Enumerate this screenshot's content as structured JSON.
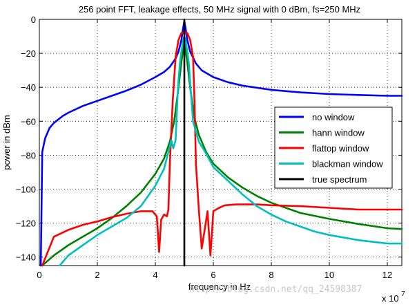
{
  "chart_data": {
    "type": "line",
    "title": "256 point FFT, leakage effects, 50 MHz signal with 0 dBm, fs=250 MHz",
    "xlabel": "frequency in Hz",
    "ylabel": "power in dBm",
    "x_multiplier": "x 10",
    "x_multiplier_exponent": "7",
    "xlim": [
      0,
      12.5
    ],
    "ylim": [
      -145,
      0
    ],
    "xticks": [
      "0",
      "2",
      "4",
      "6",
      "8",
      "10",
      "12"
    ],
    "yticks": [
      "0",
      "−20",
      "−40",
      "−60",
      "−80",
      "−100",
      "−120",
      "−140"
    ],
    "xtick_values": [
      0,
      2,
      4,
      6,
      8,
      10,
      12
    ],
    "ytick_values": [
      0,
      -20,
      -40,
      -60,
      -80,
      -100,
      -120,
      -140
    ],
    "grid": true,
    "legend_position": "right",
    "series": [
      {
        "name": "no window",
        "color": "#0000ff",
        "x": [
          0.05,
          0.1,
          0.2,
          0.35,
          0.5,
          0.8,
          1.0,
          1.5,
          2.0,
          2.5,
          3.0,
          3.5,
          4.0,
          4.3,
          4.5,
          4.7,
          4.8,
          4.9,
          4.95,
          5.0,
          5.05,
          5.1,
          5.2,
          5.4,
          5.6,
          6.0,
          6.5,
          7.0,
          8.0,
          9.0,
          10.0,
          11.0,
          12.0,
          12.5
        ],
        "y": [
          -145,
          -78,
          -70,
          -64,
          -61,
          -57,
          -55,
          -51,
          -48,
          -45,
          -42,
          -38.5,
          -34,
          -31,
          -28,
          -23,
          -19,
          -12,
          -6,
          -1,
          -6,
          -12,
          -19,
          -26,
          -30,
          -34,
          -37,
          -39,
          -41.5,
          -43,
          -44,
          -44.5,
          -45,
          -45
        ]
      },
      {
        "name": "hann window",
        "color": "#008000",
        "x": [
          0.1,
          0.5,
          1.0,
          1.5,
          2.0,
          2.5,
          3.0,
          3.5,
          4.0,
          4.3,
          4.5,
          4.65,
          4.8,
          4.9,
          5.0,
          5.1,
          5.2,
          5.35,
          5.5,
          5.75,
          6.0,
          6.5,
          7.0,
          7.5,
          8.0,
          8.5,
          9.0,
          10.0,
          11.0,
          12.0,
          12.5
        ],
        "y": [
          -145,
          -139,
          -133,
          -128,
          -123,
          -117,
          -110,
          -102,
          -91,
          -82,
          -72,
          -60,
          -40,
          -25,
          -13,
          -25,
          -40,
          -58,
          -68,
          -78,
          -85,
          -93,
          -99,
          -104,
          -108,
          -111,
          -114,
          -117.5,
          -120.5,
          -123,
          -123.5
        ]
      },
      {
        "name": "flattop window",
        "color": "#ff0000",
        "x": [
          0.1,
          0.5,
          1.0,
          1.5,
          2.0,
          2.5,
          3.0,
          3.5,
          3.9,
          4.05,
          4.13,
          4.2,
          4.3,
          4.4,
          4.45,
          4.5,
          4.6,
          4.7,
          4.8,
          4.9,
          5.0,
          5.1,
          5.2,
          5.3,
          5.35,
          5.4,
          5.5,
          5.6,
          5.8,
          5.9,
          6.0,
          6.2,
          6.4,
          6.8,
          7.5,
          8.0,
          9.0,
          10.0,
          11.0,
          12.0,
          12.5
        ],
        "y": [
          -145,
          -128,
          -124,
          -121,
          -119,
          -116.5,
          -114.5,
          -113,
          -113,
          -116,
          -137,
          -118,
          -115,
          -116,
          -112,
          -85,
          -48,
          -22,
          -12,
          -8,
          -8,
          -8,
          -12,
          -22,
          -48,
          -85,
          -112,
          -135,
          -113,
          -139,
          -113,
          -111,
          -109.5,
          -109,
          -109,
          -109.5,
          -110,
          -111,
          -112,
          -112,
          -112
        ]
      },
      {
        "name": "blackman window",
        "color": "#00bfbf",
        "x": [
          0.7,
          1.0,
          1.5,
          2.0,
          2.5,
          3.0,
          3.5,
          4.0,
          4.3,
          4.5,
          4.55,
          4.62,
          4.7,
          4.78,
          4.85,
          4.95,
          5.0,
          5.05,
          5.15,
          5.3,
          5.5,
          5.75,
          6.0,
          6.5,
          7.0,
          7.5,
          8.0,
          8.5,
          9.0,
          9.5,
          10.0,
          11.0,
          12.0,
          12.5
        ],
        "y": [
          -145,
          -139,
          -133,
          -127,
          -122,
          -117,
          -110,
          -98,
          -88,
          -75,
          -71,
          -76,
          -71,
          -40,
          -25,
          -13,
          -10,
          -13,
          -25,
          -60,
          -72,
          -79,
          -87,
          -95,
          -103,
          -110,
          -115,
          -119,
          -122,
          -125,
          -127,
          -130,
          -132,
          -132
        ]
      },
      {
        "name": "true spectrum",
        "color": "#000000",
        "x": [
          5.0,
          5.0
        ],
        "y": [
          -145,
          0
        ]
      }
    ]
  },
  "watermark": "http://blog.csdn.net/qq_24598387"
}
